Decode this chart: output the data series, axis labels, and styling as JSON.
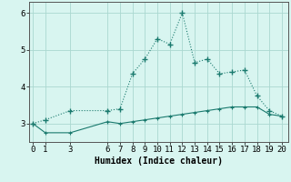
{
  "line1_x": [
    0,
    1,
    3,
    6,
    7,
    8,
    9,
    10,
    11,
    12,
    13,
    14,
    15,
    16,
    17,
    18,
    19,
    20
  ],
  "line1_y": [
    3.0,
    3.1,
    3.35,
    3.35,
    3.4,
    4.35,
    4.75,
    5.3,
    5.15,
    6.0,
    4.65,
    4.75,
    4.35,
    4.4,
    4.45,
    3.75,
    3.35,
    3.2
  ],
  "line2_x": [
    0,
    1,
    3,
    6,
    7,
    8,
    9,
    10,
    11,
    12,
    13,
    14,
    15,
    16,
    17,
    18,
    19,
    20
  ],
  "line2_y": [
    3.0,
    2.75,
    2.75,
    3.05,
    3.0,
    3.05,
    3.1,
    3.15,
    3.2,
    3.25,
    3.3,
    3.35,
    3.4,
    3.45,
    3.45,
    3.45,
    3.25,
    3.2
  ],
  "line_color": "#1a7a6e",
  "bg_color": "#d8f5f0",
  "grid_color": "#aad8d0",
  "xlabel": "Humidex (Indice chaleur)",
  "xticks": [
    0,
    1,
    3,
    6,
    7,
    8,
    9,
    10,
    11,
    12,
    13,
    14,
    15,
    16,
    17,
    18,
    19,
    20
  ],
  "yticks": [
    3,
    4,
    5,
    6
  ],
  "xlim": [
    -0.3,
    20.5
  ],
  "ylim": [
    2.5,
    6.3
  ],
  "xlabel_fontsize": 7.0,
  "tick_fontsize": 6.5
}
